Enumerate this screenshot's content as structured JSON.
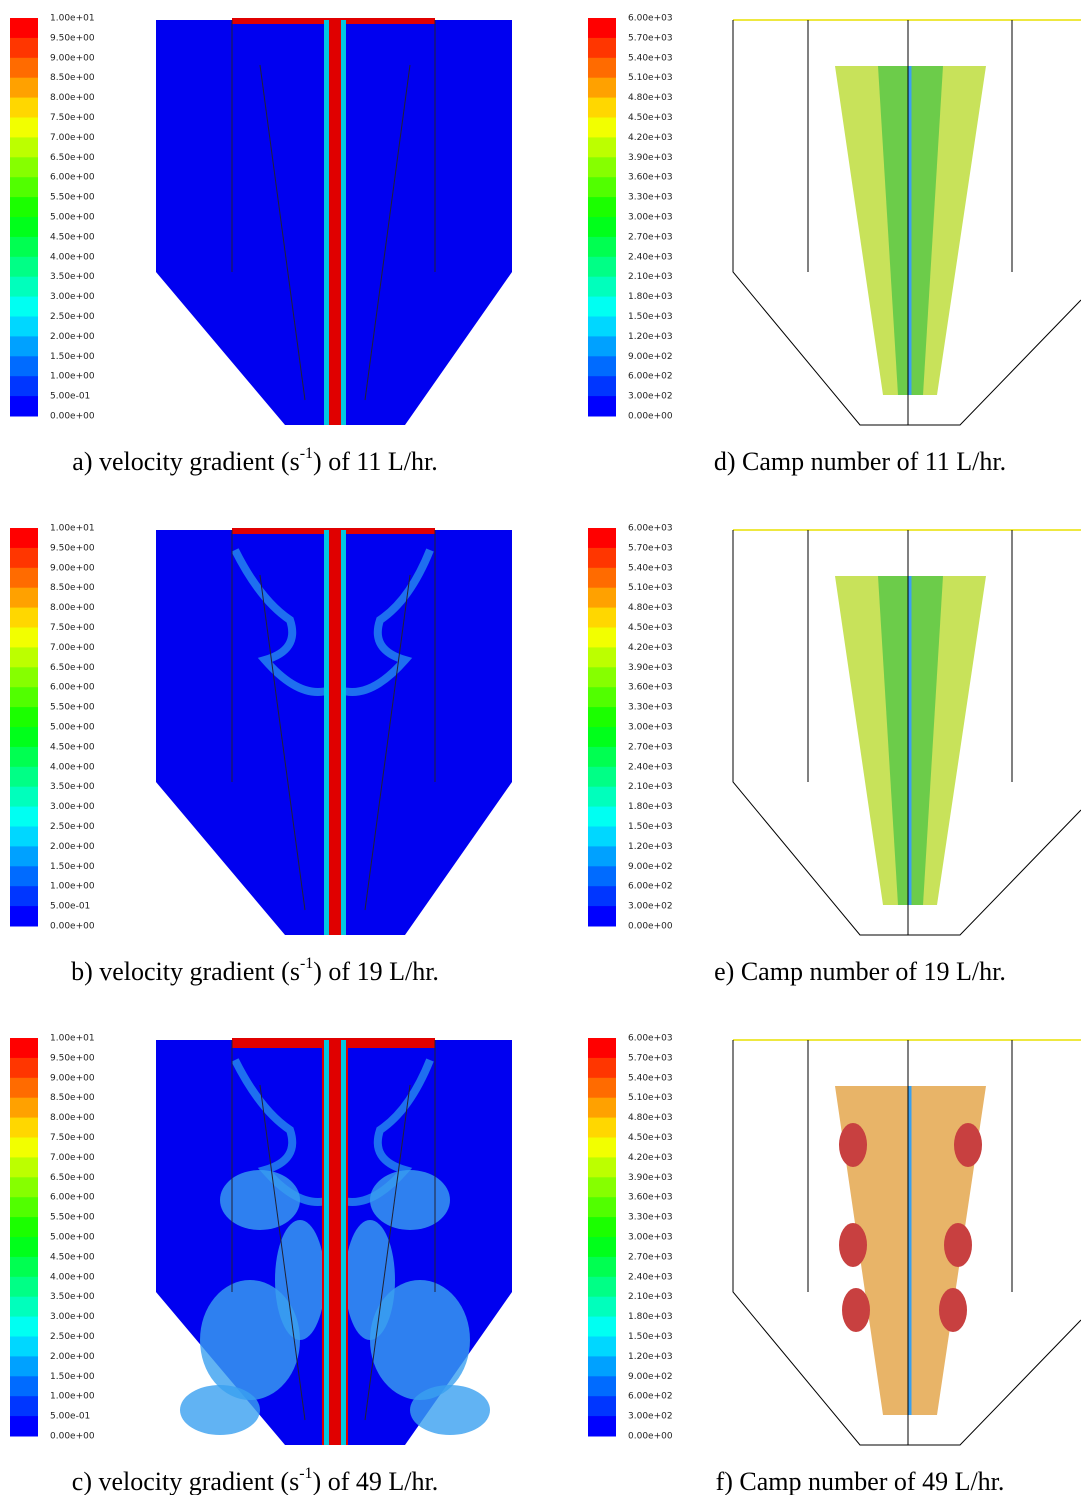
{
  "panels": [
    {
      "legend_labels": [
        "1.00e+01",
        "9.50e+00",
        "9.00e+00",
        "8.50e+00",
        "8.00e+00",
        "7.50e+00",
        "7.00e+00",
        "6.50e+00",
        "6.00e+00",
        "5.50e+00",
        "5.00e+00",
        "4.50e+00",
        "4.00e+00",
        "3.50e+00",
        "3.00e+00",
        "2.50e+00",
        "2.00e+00",
        "1.50e+00",
        "1.00e+00",
        "5.00e-01",
        "0.00e+00"
      ],
      "caption": {
        "prefix": "a) velocity gradient (s",
        "superscript": "-1",
        "suffix": ") of 11 L/hr."
      }
    },
    {
      "legend_labels": [
        "1.00e+01",
        "9.50e+00",
        "9.00e+00",
        "8.50e+00",
        "8.00e+00",
        "7.50e+00",
        "7.00e+00",
        "6.50e+00",
        "6.00e+00",
        "5.50e+00",
        "5.00e+00",
        "4.50e+00",
        "4.00e+00",
        "3.50e+00",
        "3.00e+00",
        "2.50e+00",
        "2.00e+00",
        "1.50e+00",
        "1.00e+00",
        "5.00e-01",
        "0.00e+00"
      ],
      "caption": {
        "prefix": "b) velocity gradient (s",
        "superscript": "-1",
        "suffix": ") of 19 L/hr."
      }
    },
    {
      "legend_labels": [
        "1.00e+01",
        "9.50e+00",
        "9.00e+00",
        "8.50e+00",
        "8.00e+00",
        "7.50e+00",
        "7.00e+00",
        "6.50e+00",
        "6.00e+00",
        "5.50e+00",
        "5.00e+00",
        "4.50e+00",
        "4.00e+00",
        "3.50e+00",
        "3.00e+00",
        "2.50e+00",
        "2.00e+00",
        "1.50e+00",
        "1.00e+00",
        "5.00e-01",
        "0.00e+00"
      ],
      "caption": {
        "prefix": "c) velocity gradient (s",
        "superscript": "-1",
        "suffix": ") of 49 L/hr."
      }
    },
    {
      "legend_labels": [
        "6.00e+03",
        "5.70e+03",
        "5.40e+03",
        "5.10e+03",
        "4.80e+03",
        "4.50e+03",
        "4.20e+03",
        "3.90e+03",
        "3.60e+03",
        "3.30e+03",
        "3.00e+03",
        "2.70e+03",
        "2.40e+03",
        "2.10e+03",
        "1.80e+03",
        "1.50e+03",
        "1.20e+03",
        "9.00e+02",
        "6.00e+02",
        "3.00e+02",
        "0.00e+00"
      ],
      "caption": {
        "text": "d) Camp number of 11 L/hr."
      }
    },
    {
      "legend_labels": [
        "6.00e+03",
        "5.70e+03",
        "5.40e+03",
        "5.10e+03",
        "4.80e+03",
        "4.50e+03",
        "4.20e+03",
        "3.90e+03",
        "3.60e+03",
        "3.30e+03",
        "3.00e+03",
        "2.70e+03",
        "2.40e+03",
        "2.10e+03",
        "1.80e+03",
        "1.50e+03",
        "1.20e+03",
        "9.00e+02",
        "6.00e+02",
        "3.00e+02",
        "0.00e+00"
      ],
      "caption": {
        "text": "e) Camp number of 19 L/hr."
      }
    },
    {
      "legend_labels": [
        "6.00e+03",
        "5.70e+03",
        "5.40e+03",
        "5.10e+03",
        "4.80e+03",
        "4.50e+03",
        "4.20e+03",
        "3.90e+03",
        "3.60e+03",
        "3.30e+03",
        "3.00e+03",
        "2.70e+03",
        "2.40e+03",
        "2.10e+03",
        "1.80e+03",
        "1.50e+03",
        "1.20e+03",
        "9.00e+02",
        "6.00e+02",
        "3.00e+02",
        "0.00e+00"
      ],
      "caption": {
        "text": "f) Camp number of 49 L/hr."
      }
    }
  ]
}
